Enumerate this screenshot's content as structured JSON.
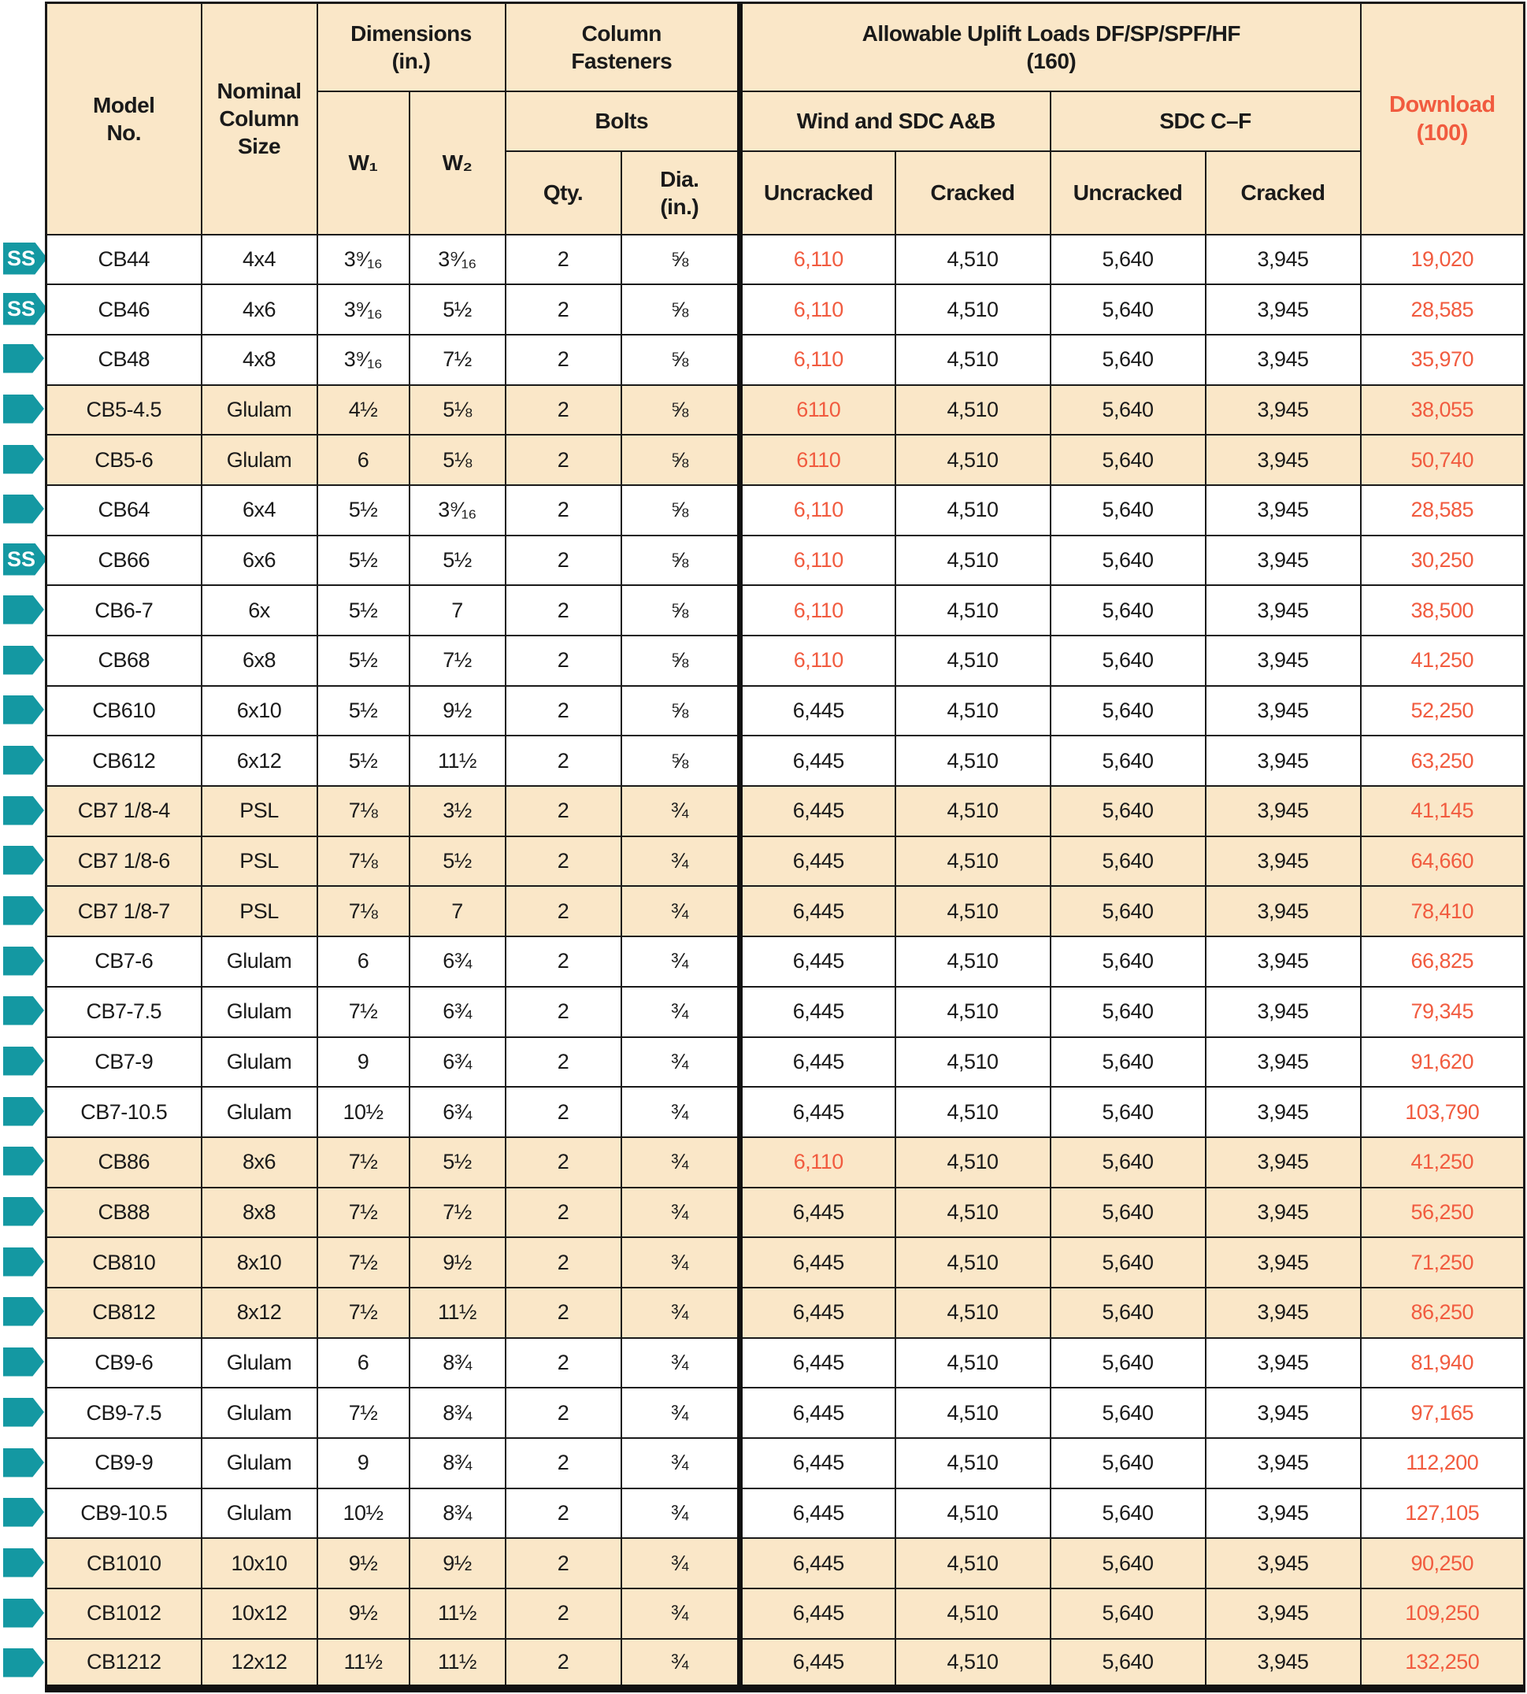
{
  "header": {
    "model_no": "Model\nNo.",
    "nominal": "Nominal\nColumn\nSize",
    "dimensions": "Dimensions\n(in.)",
    "w1": "W₁",
    "w2": "W₂",
    "column_fasteners": "Column\nFasteners",
    "bolts": "Bolts",
    "qty": "Qty.",
    "dia": "Dia.\n(in.)",
    "uplift_group": "Allowable Uplift Loads DF/SP/SPF/HF\n(160)",
    "wind_sdc_ab": "Wind and SDC A&B",
    "sdc_cf": "SDC C–F",
    "uncracked": "Uncracked",
    "cracked": "Cracked",
    "download": "Download\n(100)"
  },
  "colors": {
    "accent_orange": "#F15B3F",
    "marker_teal": "#1498A2",
    "row_shade": "#FAE7C8",
    "border": "#1A1A1A"
  },
  "markers": {
    "ss_label": "SS"
  },
  "rows": [
    {
      "marker": "SS",
      "shaded": false,
      "model": "CB44",
      "nominal": "4x4",
      "w1": "3⁹⁄₁₆",
      "w2": "3⁹⁄₁₆",
      "qty": "2",
      "dia": "⅝",
      "wind_uncracked": "6,110",
      "wind_uncracked_orange": true,
      "wind_cracked": "4,510",
      "sdc_uncracked": "5,640",
      "sdc_cracked": "3,945",
      "download": "19,020"
    },
    {
      "marker": "SS",
      "shaded": false,
      "model": "CB46",
      "nominal": "4x6",
      "w1": "3⁹⁄₁₆",
      "w2": "5½",
      "qty": "2",
      "dia": "⅝",
      "wind_uncracked": "6,110",
      "wind_uncracked_orange": true,
      "wind_cracked": "4,510",
      "sdc_uncracked": "5,640",
      "sdc_cracked": "3,945",
      "download": "28,585"
    },
    {
      "marker": "arrow",
      "shaded": false,
      "model": "CB48",
      "nominal": "4x8",
      "w1": "3⁹⁄₁₆",
      "w2": "7½",
      "qty": "2",
      "dia": "⅝",
      "wind_uncracked": "6,110",
      "wind_uncracked_orange": true,
      "wind_cracked": "4,510",
      "sdc_uncracked": "5,640",
      "sdc_cracked": "3,945",
      "download": "35,970"
    },
    {
      "marker": "arrow",
      "shaded": true,
      "model": "CB5-4.5",
      "nominal": "Glulam",
      "w1": "4½",
      "w2": "5⅛",
      "qty": "2",
      "dia": "⅝",
      "wind_uncracked": "6110",
      "wind_uncracked_orange": true,
      "wind_cracked": "4,510",
      "sdc_uncracked": "5,640",
      "sdc_cracked": "3,945",
      "download": "38,055"
    },
    {
      "marker": "arrow",
      "shaded": true,
      "model": "CB5-6",
      "nominal": "Glulam",
      "w1": "6",
      "w2": "5⅛",
      "qty": "2",
      "dia": "⅝",
      "wind_uncracked": "6110",
      "wind_uncracked_orange": true,
      "wind_cracked": "4,510",
      "sdc_uncracked": "5,640",
      "sdc_cracked": "3,945",
      "download": "50,740"
    },
    {
      "marker": "arrow",
      "shaded": false,
      "model": "CB64",
      "nominal": "6x4",
      "w1": "5½",
      "w2": "3⁹⁄₁₆",
      "qty": "2",
      "dia": "⅝",
      "wind_uncracked": "6,110",
      "wind_uncracked_orange": true,
      "wind_cracked": "4,510",
      "sdc_uncracked": "5,640",
      "sdc_cracked": "3,945",
      "download": "28,585"
    },
    {
      "marker": "SS",
      "shaded": false,
      "model": "CB66",
      "nominal": "6x6",
      "w1": "5½",
      "w2": "5½",
      "qty": "2",
      "dia": "⅝",
      "wind_uncracked": "6,110",
      "wind_uncracked_orange": true,
      "wind_cracked": "4,510",
      "sdc_uncracked": "5,640",
      "sdc_cracked": "3,945",
      "download": "30,250"
    },
    {
      "marker": "arrow",
      "shaded": false,
      "model": "CB6-7",
      "nominal": "6x",
      "w1": "5½",
      "w2": "7",
      "qty": "2",
      "dia": "⅝",
      "wind_uncracked": "6,110",
      "wind_uncracked_orange": true,
      "wind_cracked": "4,510",
      "sdc_uncracked": "5,640",
      "sdc_cracked": "3,945",
      "download": "38,500"
    },
    {
      "marker": "arrow",
      "shaded": false,
      "model": "CB68",
      "nominal": "6x8",
      "w1": "5½",
      "w2": "7½",
      "qty": "2",
      "dia": "⅝",
      "wind_uncracked": "6,110",
      "wind_uncracked_orange": true,
      "wind_cracked": "4,510",
      "sdc_uncracked": "5,640",
      "sdc_cracked": "3,945",
      "download": "41,250"
    },
    {
      "marker": "arrow",
      "shaded": false,
      "model": "CB610",
      "nominal": "6x10",
      "w1": "5½",
      "w2": "9½",
      "qty": "2",
      "dia": "⅝",
      "wind_uncracked": "6,445",
      "wind_uncracked_orange": false,
      "wind_cracked": "4,510",
      "sdc_uncracked": "5,640",
      "sdc_cracked": "3,945",
      "download": "52,250"
    },
    {
      "marker": "arrow",
      "shaded": false,
      "model": "CB612",
      "nominal": "6x12",
      "w1": "5½",
      "w2": "11½",
      "qty": "2",
      "dia": "⅝",
      "wind_uncracked": "6,445",
      "wind_uncracked_orange": false,
      "wind_cracked": "4,510",
      "sdc_uncracked": "5,640",
      "sdc_cracked": "3,945",
      "download": "63,250"
    },
    {
      "marker": "arrow",
      "shaded": true,
      "model": "CB7 1/8-4",
      "nominal": "PSL",
      "w1": "7⅛",
      "w2": "3½",
      "qty": "2",
      "dia": "¾",
      "wind_uncracked": "6,445",
      "wind_uncracked_orange": false,
      "wind_cracked": "4,510",
      "sdc_uncracked": "5,640",
      "sdc_cracked": "3,945",
      "download": "41,145"
    },
    {
      "marker": "arrow",
      "shaded": true,
      "model": "CB7 1/8-6",
      "nominal": "PSL",
      "w1": "7⅛",
      "w2": "5½",
      "qty": "2",
      "dia": "¾",
      "wind_uncracked": "6,445",
      "wind_uncracked_orange": false,
      "wind_cracked": "4,510",
      "sdc_uncracked": "5,640",
      "sdc_cracked": "3,945",
      "download": "64,660"
    },
    {
      "marker": "arrow",
      "shaded": true,
      "model": "CB7 1/8-7",
      "nominal": "PSL",
      "w1": "7⅛",
      "w2": "7",
      "qty": "2",
      "dia": "¾",
      "wind_uncracked": "6,445",
      "wind_uncracked_orange": false,
      "wind_cracked": "4,510",
      "sdc_uncracked": "5,640",
      "sdc_cracked": "3,945",
      "download": "78,410"
    },
    {
      "marker": "arrow",
      "shaded": false,
      "model": "CB7-6",
      "nominal": "Glulam",
      "w1": "6",
      "w2": "6¾",
      "qty": "2",
      "dia": "¾",
      "wind_uncracked": "6,445",
      "wind_uncracked_orange": false,
      "wind_cracked": "4,510",
      "sdc_uncracked": "5,640",
      "sdc_cracked": "3,945",
      "download": "66,825"
    },
    {
      "marker": "arrow",
      "shaded": false,
      "model": "CB7-7.5",
      "nominal": "Glulam",
      "w1": "7½",
      "w2": "6¾",
      "qty": "2",
      "dia": "¾",
      "wind_uncracked": "6,445",
      "wind_uncracked_orange": false,
      "wind_cracked": "4,510",
      "sdc_uncracked": "5,640",
      "sdc_cracked": "3,945",
      "download": "79,345"
    },
    {
      "marker": "arrow",
      "shaded": false,
      "model": "CB7-9",
      "nominal": "Glulam",
      "w1": "9",
      "w2": "6¾",
      "qty": "2",
      "dia": "¾",
      "wind_uncracked": "6,445",
      "wind_uncracked_orange": false,
      "wind_cracked": "4,510",
      "sdc_uncracked": "5,640",
      "sdc_cracked": "3,945",
      "download": "91,620"
    },
    {
      "marker": "arrow",
      "shaded": false,
      "model": "CB7-10.5",
      "nominal": "Glulam",
      "w1": "10½",
      "w2": "6¾",
      "qty": "2",
      "dia": "¾",
      "wind_uncracked": "6,445",
      "wind_uncracked_orange": false,
      "wind_cracked": "4,510",
      "sdc_uncracked": "5,640",
      "sdc_cracked": "3,945",
      "download": "103,790"
    },
    {
      "marker": "arrow",
      "shaded": true,
      "model": "CB86",
      "nominal": "8x6",
      "w1": "7½",
      "w2": "5½",
      "qty": "2",
      "dia": "¾",
      "wind_uncracked": "6,110",
      "wind_uncracked_orange": true,
      "wind_cracked": "4,510",
      "sdc_uncracked": "5,640",
      "sdc_cracked": "3,945",
      "download": "41,250"
    },
    {
      "marker": "arrow",
      "shaded": true,
      "model": "CB88",
      "nominal": "8x8",
      "w1": "7½",
      "w2": "7½",
      "qty": "2",
      "dia": "¾",
      "wind_uncracked": "6,445",
      "wind_uncracked_orange": false,
      "wind_cracked": "4,510",
      "sdc_uncracked": "5,640",
      "sdc_cracked": "3,945",
      "download": "56,250"
    },
    {
      "marker": "arrow",
      "shaded": true,
      "model": "CB810",
      "nominal": "8x10",
      "w1": "7½",
      "w2": "9½",
      "qty": "2",
      "dia": "¾",
      "wind_uncracked": "6,445",
      "wind_uncracked_orange": false,
      "wind_cracked": "4,510",
      "sdc_uncracked": "5,640",
      "sdc_cracked": "3,945",
      "download": "71,250"
    },
    {
      "marker": "arrow",
      "shaded": true,
      "model": "CB812",
      "nominal": "8x12",
      "w1": "7½",
      "w2": "11½",
      "qty": "2",
      "dia": "¾",
      "wind_uncracked": "6,445",
      "wind_uncracked_orange": false,
      "wind_cracked": "4,510",
      "sdc_uncracked": "5,640",
      "sdc_cracked": "3,945",
      "download": "86,250"
    },
    {
      "marker": "arrow",
      "shaded": false,
      "model": "CB9-6",
      "nominal": "Glulam",
      "w1": "6",
      "w2": "8¾",
      "qty": "2",
      "dia": "¾",
      "wind_uncracked": "6,445",
      "wind_uncracked_orange": false,
      "wind_cracked": "4,510",
      "sdc_uncracked": "5,640",
      "sdc_cracked": "3,945",
      "download": "81,940"
    },
    {
      "marker": "arrow",
      "shaded": false,
      "model": "CB9-7.5",
      "nominal": "Glulam",
      "w1": "7½",
      "w2": "8¾",
      "qty": "2",
      "dia": "¾",
      "wind_uncracked": "6,445",
      "wind_uncracked_orange": false,
      "wind_cracked": "4,510",
      "sdc_uncracked": "5,640",
      "sdc_cracked": "3,945",
      "download": "97,165"
    },
    {
      "marker": "arrow",
      "shaded": false,
      "model": "CB9-9",
      "nominal": "Glulam",
      "w1": "9",
      "w2": "8¾",
      "qty": "2",
      "dia": "¾",
      "wind_uncracked": "6,445",
      "wind_uncracked_orange": false,
      "wind_cracked": "4,510",
      "sdc_uncracked": "5,640",
      "sdc_cracked": "3,945",
      "download": "112,200"
    },
    {
      "marker": "arrow",
      "shaded": false,
      "model": "CB9-10.5",
      "nominal": "Glulam",
      "w1": "10½",
      "w2": "8¾",
      "qty": "2",
      "dia": "¾",
      "wind_uncracked": "6,445",
      "wind_uncracked_orange": false,
      "wind_cracked": "4,510",
      "sdc_uncracked": "5,640",
      "sdc_cracked": "3,945",
      "download": "127,105"
    },
    {
      "marker": "arrow",
      "shaded": true,
      "model": "CB1010",
      "nominal": "10x10",
      "w1": "9½",
      "w2": "9½",
      "qty": "2",
      "dia": "¾",
      "wind_uncracked": "6,445",
      "wind_uncracked_orange": false,
      "wind_cracked": "4,510",
      "sdc_uncracked": "5,640",
      "sdc_cracked": "3,945",
      "download": "90,250"
    },
    {
      "marker": "arrow",
      "shaded": true,
      "model": "CB1012",
      "nominal": "10x12",
      "w1": "9½",
      "w2": "11½",
      "qty": "2",
      "dia": "¾",
      "wind_uncracked": "6,445",
      "wind_uncracked_orange": false,
      "wind_cracked": "4,510",
      "sdc_uncracked": "5,640",
      "sdc_cracked": "3,945",
      "download": "109,250"
    },
    {
      "marker": "arrow",
      "shaded": true,
      "model": "CB1212",
      "nominal": "12x12",
      "w1": "11½",
      "w2": "11½",
      "qty": "2",
      "dia": "¾",
      "wind_uncracked": "6,445",
      "wind_uncracked_orange": false,
      "wind_cracked": "4,510",
      "sdc_uncracked": "5,640",
      "sdc_cracked": "3,945",
      "download": "132,250"
    }
  ]
}
